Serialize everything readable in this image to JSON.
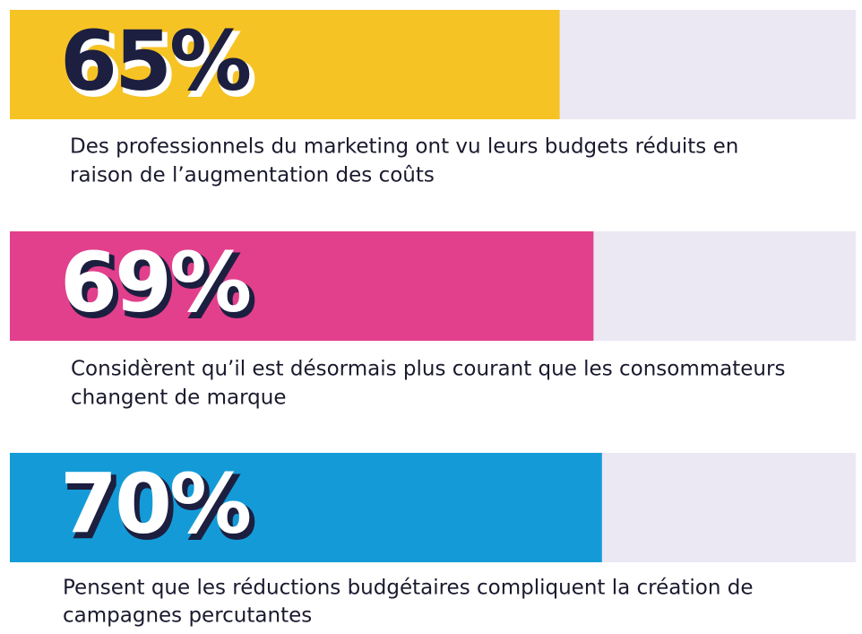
{
  "xlim": [
    0,
    100
  ],
  "items": [
    {
      "value": 65,
      "value_label": "65%",
      "color": "#f6c325",
      "description_lines": [
        "Des professionnels du marketing ont vu leurs budgets réduits en",
        "raison de l’augmentation des coûts"
      ]
    },
    {
      "value": 69,
      "value_label": "69%",
      "color": "#e23f8c",
      "description_lines": [
        "Considèrent qu’il est désormais plus courant que les consommateurs",
        "changent de marque"
      ]
    },
    {
      "value": 70,
      "value_label": "70%",
      "color": "#149bd7",
      "description_lines": [
        "Pensent que les réductions budgétaires compliquent la création de",
        "campagnes percutantes"
      ]
    }
  ]
}
